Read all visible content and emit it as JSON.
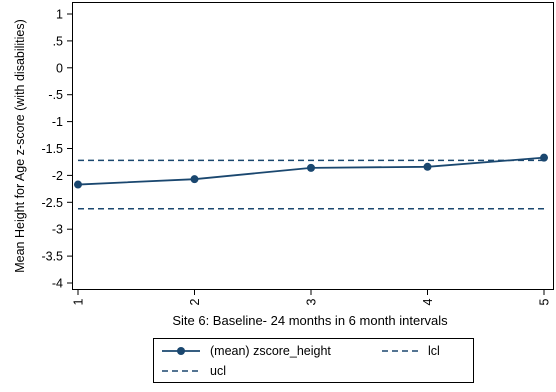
{
  "chart_data": {
    "type": "line",
    "title": "",
    "xlabel": "Site 6: Baseline- 24 months in 6 month intervals",
    "ylabel": "Mean Height for Age z-score (with disabilities)",
    "xlim": [
      1,
      5
    ],
    "ylim": [
      -4,
      1
    ],
    "x_ticks": [
      1,
      2,
      3,
      4,
      5
    ],
    "x_tick_labels": [
      "1",
      "2",
      "3",
      "4",
      "5"
    ],
    "y_ticks": [
      1,
      0.5,
      0,
      -0.5,
      -1,
      -1.5,
      -2,
      -2.5,
      -3,
      -3.5,
      -4
    ],
    "y_tick_labels": [
      "1",
      ".5",
      "0",
      "-.5",
      "-1",
      "-1.5",
      "-2",
      "-2.5",
      "-3",
      "-3.5",
      "-4"
    ],
    "grid": false,
    "legend_position": "bottom",
    "series": [
      {
        "name": "(mean) zscore_height",
        "style": "line-markers",
        "color": "#1a476f",
        "x": [
          1,
          2,
          3,
          4,
          5
        ],
        "values": [
          -2.17,
          -2.07,
          -1.86,
          -1.84,
          -1.67
        ]
      },
      {
        "name": "lcl",
        "style": "dashed",
        "color": "#1a476f",
        "x": [
          1,
          5
        ],
        "values": [
          -1.72,
          -1.72
        ]
      },
      {
        "name": "ucl",
        "style": "dashed",
        "color": "#1a476f",
        "x": [
          1,
          5
        ],
        "values": [
          -2.62,
          -2.62
        ]
      }
    ]
  }
}
